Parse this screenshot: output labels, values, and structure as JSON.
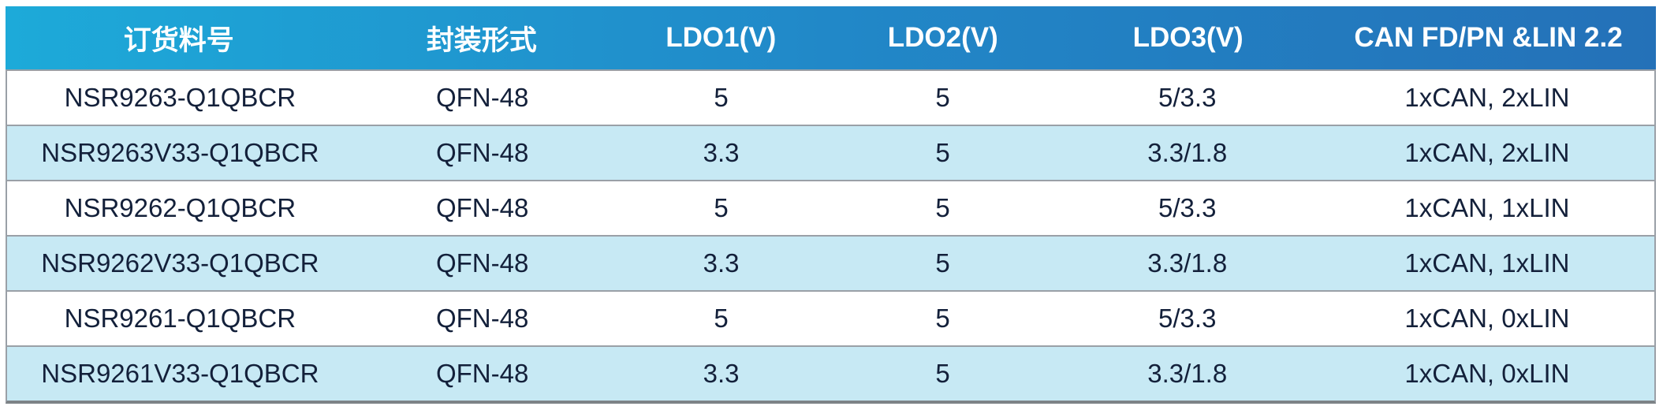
{
  "table": {
    "title": "ordering-information-table",
    "columns": [
      {
        "key": "part_number",
        "label": "订货料号"
      },
      {
        "key": "package",
        "label": "封装形式"
      },
      {
        "key": "ldo1",
        "label": "LDO1(V)"
      },
      {
        "key": "ldo2",
        "label": "LDO2(V)"
      },
      {
        "key": "ldo3",
        "label": "LDO3(V)"
      },
      {
        "key": "can_lin",
        "label": "CAN FD/PN &LIN 2.2"
      }
    ],
    "rows": [
      {
        "part_number": "NSR9263-Q1QBCR",
        "package": "QFN-48",
        "ldo1": "5",
        "ldo2": "5",
        "ldo3": "5/3.3",
        "can_lin": "1xCAN, 2xLIN"
      },
      {
        "part_number": "NSR9263V33-Q1QBCR",
        "package": "QFN-48",
        "ldo1": "3.3",
        "ldo2": "5",
        "ldo3": "3.3/1.8",
        "can_lin": "1xCAN, 2xLIN"
      },
      {
        "part_number": "NSR9262-Q1QBCR",
        "package": "QFN-48",
        "ldo1": "5",
        "ldo2": "5",
        "ldo3": "5/3.3",
        "can_lin": "1xCAN, 1xLIN"
      },
      {
        "part_number": "NSR9262V33-Q1QBCR",
        "package": "QFN-48",
        "ldo1": "3.3",
        "ldo2": "5",
        "ldo3": "3.3/1.8",
        "can_lin": "1xCAN, 1xLIN"
      },
      {
        "part_number": "NSR9261-Q1QBCR",
        "package": "QFN-48",
        "ldo1": "5",
        "ldo2": "5",
        "ldo3": "5/3.3",
        "can_lin": "1xCAN, 0xLIN"
      },
      {
        "part_number": "NSR9261V33-Q1QBCR",
        "package": "QFN-48",
        "ldo1": "3.3",
        "ldo2": "5",
        "ldo3": "3.3/1.8",
        "can_lin": "1xCAN, 0xLIN"
      }
    ]
  },
  "colors": {
    "header_gradient_start": "#1daad9",
    "header_gradient_mid": "#2188c8",
    "header_gradient_end": "#2471b8",
    "header_text": "#ffffff",
    "row_background": "#ffffff",
    "row_alt_background": "#c7e9f4",
    "body_text": "#13203a",
    "row_border": "#9aa0a7",
    "outer_border": "#7d8387"
  }
}
